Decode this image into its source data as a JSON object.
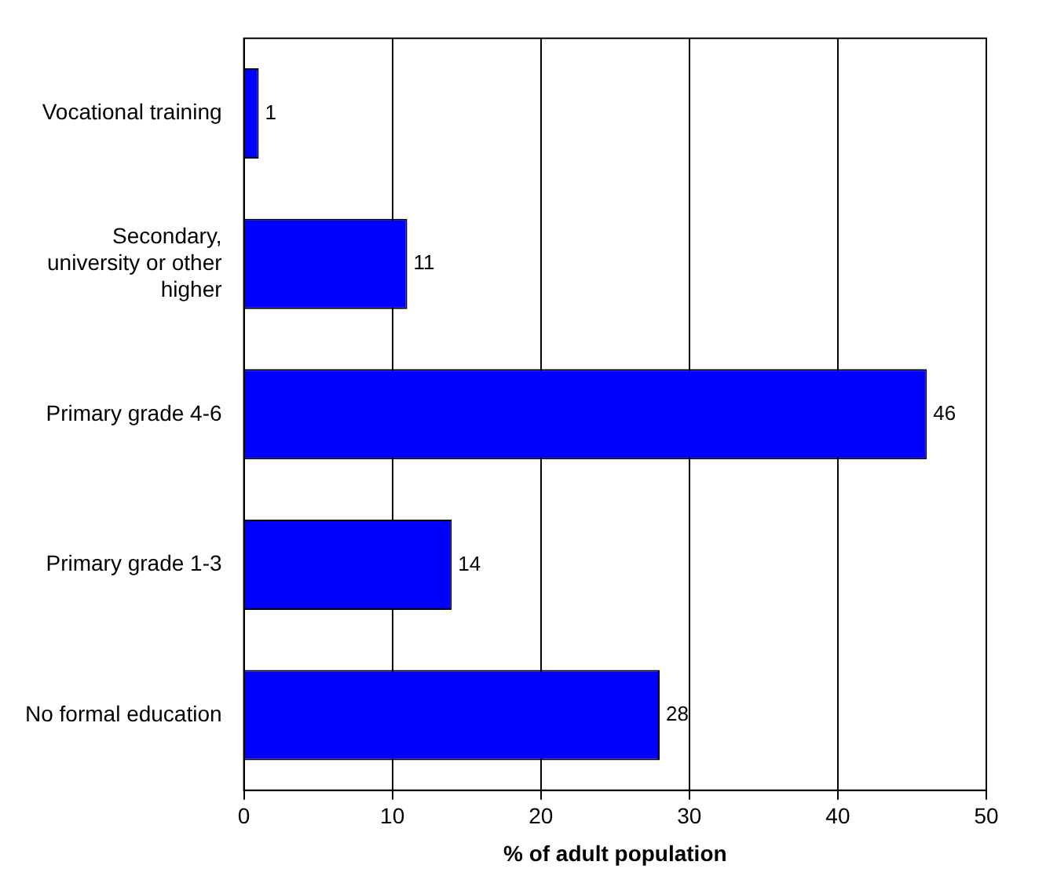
{
  "chart_data": {
    "type": "bar",
    "orientation": "horizontal",
    "categories": [
      "Vocational training",
      "Secondary, university or other higher",
      "Primary grade 4-6",
      "Primary grade 1-3",
      "No formal education"
    ],
    "values": [
      1,
      11,
      46,
      14,
      28
    ],
    "color": "#0000ff",
    "xlim": [
      0,
      50
    ],
    "xticks": [
      0,
      10,
      20,
      30,
      40,
      50
    ],
    "xlabel": "% of adult population",
    "grid": "x",
    "legend": false,
    "data_labels": true
  }
}
